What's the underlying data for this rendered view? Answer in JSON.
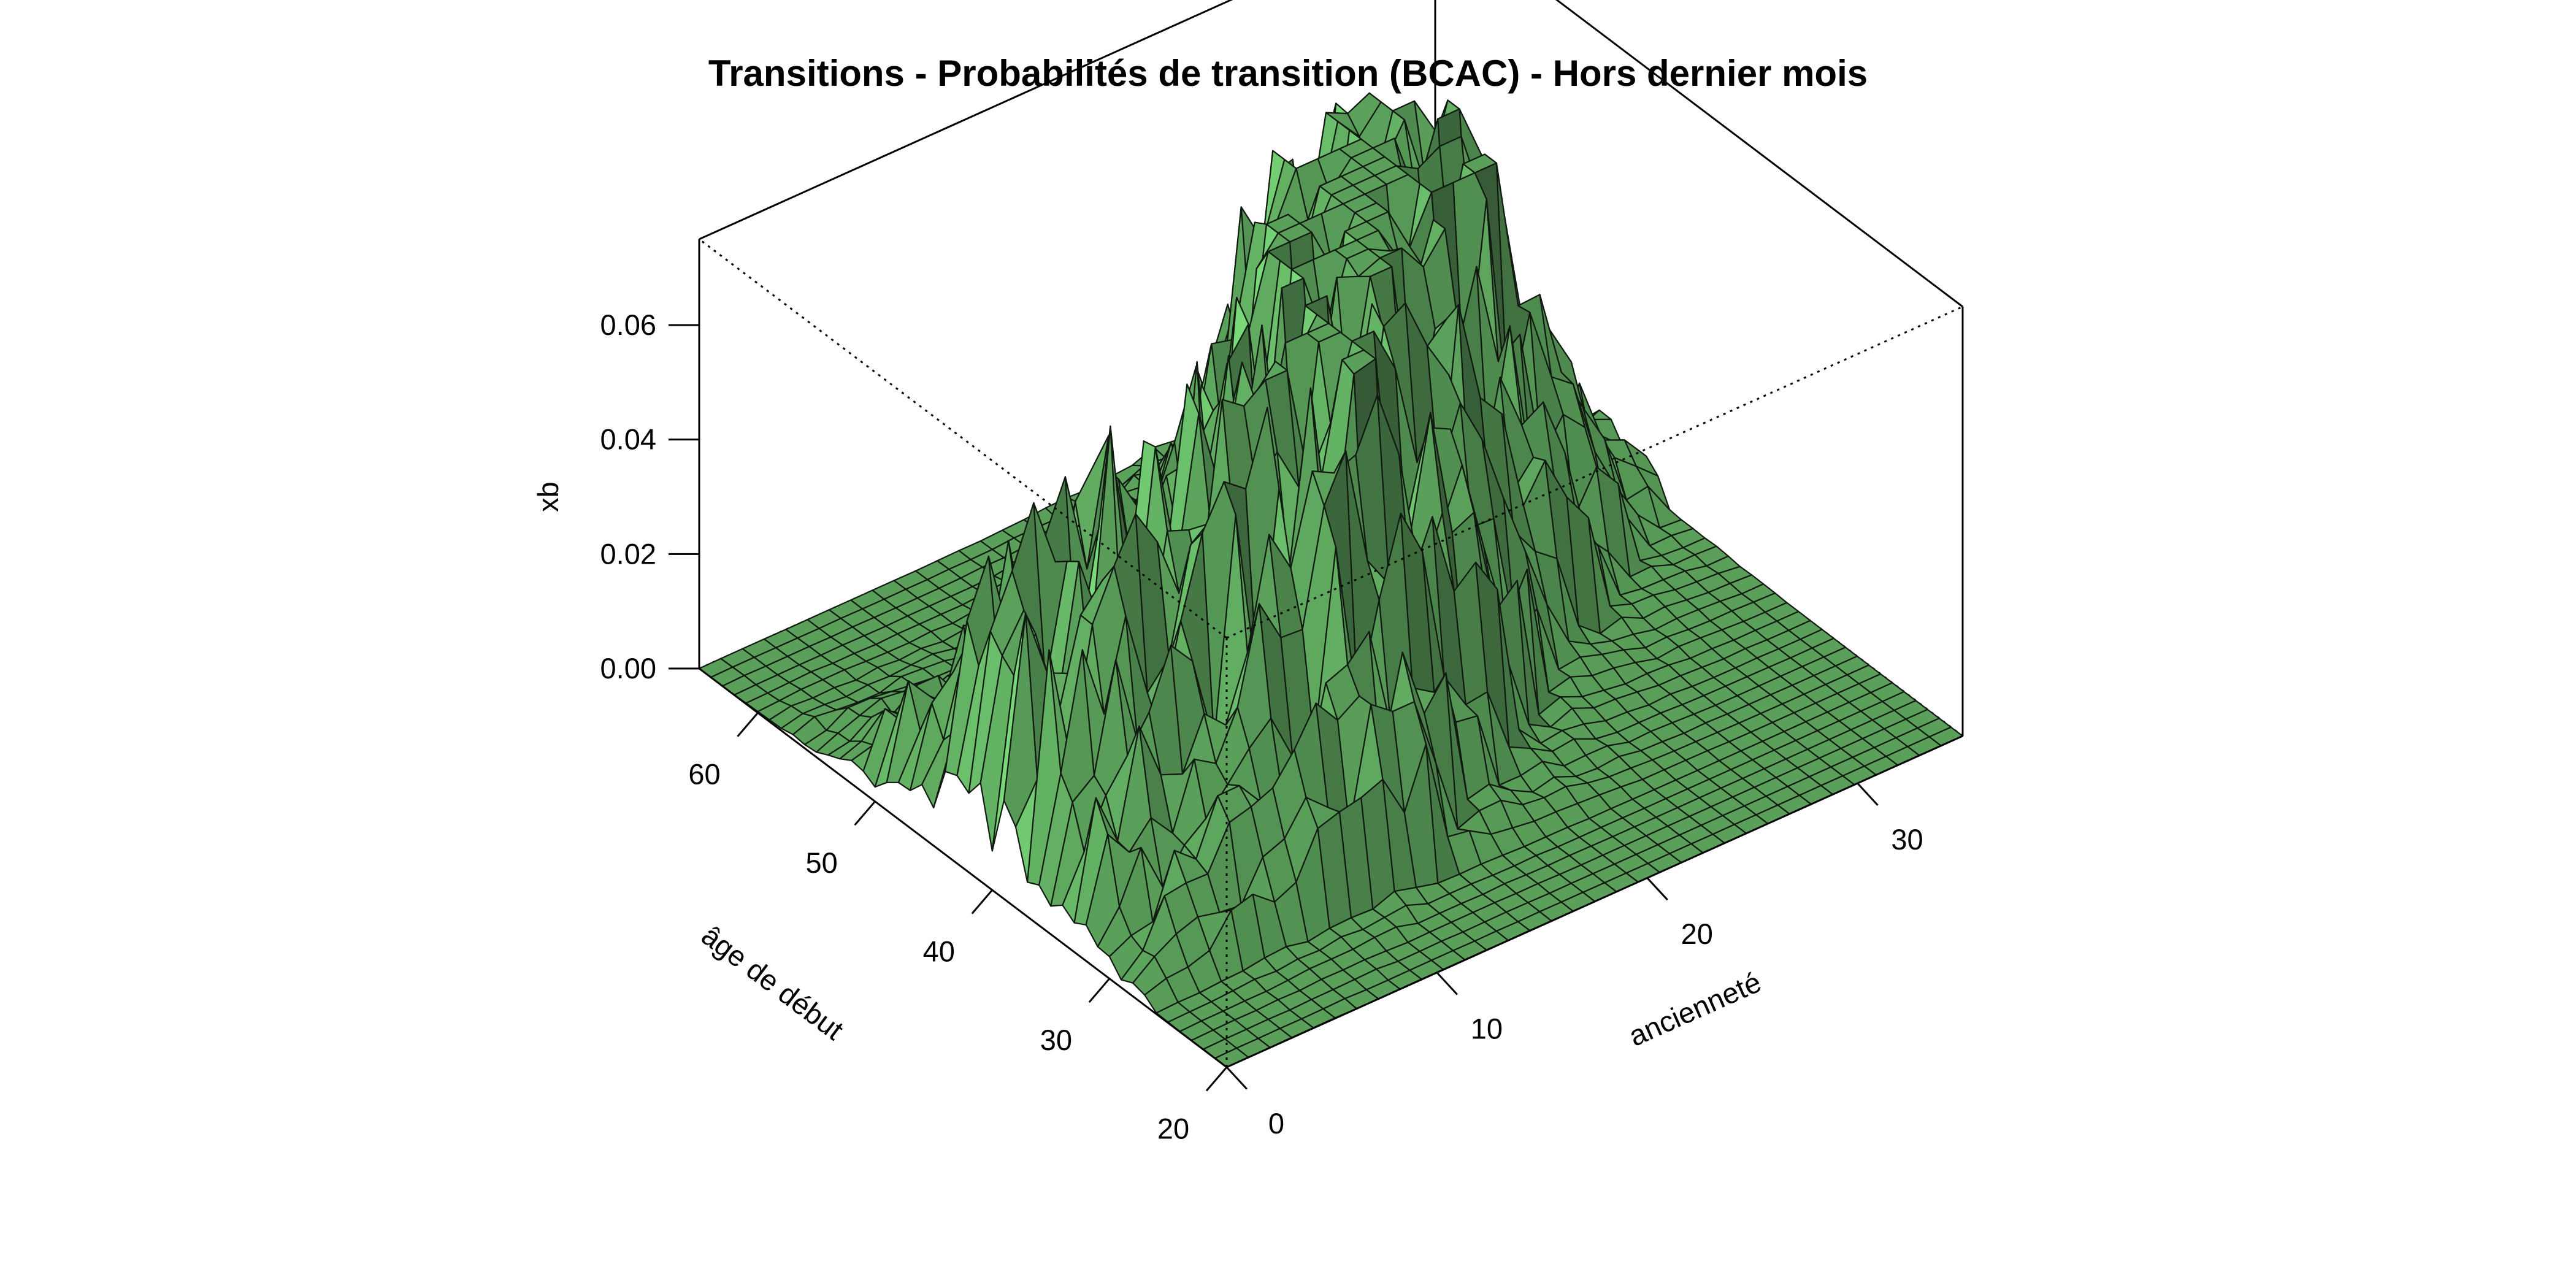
{
  "chart_data": {
    "type": "surface3d",
    "title": "Transitions - Probabilités de transition (BCAC) - Hors dernier mois",
    "xlabel": "âge de début",
    "ylabel": "ancienneté",
    "zlabel": "xb",
    "x_ticks": [
      "20",
      "30",
      "40",
      "50",
      "60"
    ],
    "y_ticks": [
      "0",
      "10",
      "20",
      "30"
    ],
    "z_ticks": [
      "0.00",
      "0.02",
      "0.04",
      "0.06"
    ],
    "xlim": [
      20,
      65
    ],
    "ylim": [
      0,
      35
    ],
    "zlim": [
      0,
      0.075
    ],
    "surface_color": "#6fcf6f",
    "peaks": [
      {
        "age": 42,
        "anciennete": 3,
        "xb": 0.067
      },
      {
        "age": 36,
        "anciennete": 14,
        "xb": 0.065
      },
      {
        "age": 46,
        "anciennete": 21,
        "xb": 0.07
      },
      {
        "age": 50,
        "anciennete": 26,
        "xb": 0.055
      }
    ]
  }
}
